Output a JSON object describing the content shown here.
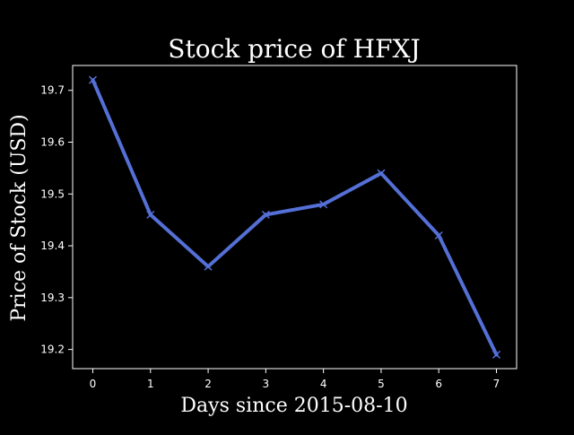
{
  "chart_data": {
    "type": "line",
    "title": "Stock price of HFXJ",
    "xlabel": "Days since 2015-08-10",
    "ylabel": "Price of Stock (USD)",
    "x": [
      0,
      1,
      2,
      3,
      4,
      5,
      6,
      7
    ],
    "series": [
      {
        "values": [
          19.72,
          19.46,
          19.36,
          19.46,
          19.48,
          19.54,
          19.42,
          19.19
        ],
        "color": "#5470d6",
        "marker": "x"
      }
    ],
    "xlim": [
      -0.35,
      7.35
    ],
    "ylim": [
      19.163,
      19.748
    ],
    "xticks": [
      "0",
      "1",
      "2",
      "3",
      "4",
      "5",
      "6",
      "7"
    ],
    "yticks": [
      "19.2",
      "19.3",
      "19.4",
      "19.5",
      "19.6",
      "19.7"
    ],
    "grid": false,
    "background": "#000000",
    "foreground": "#ffffff"
  }
}
